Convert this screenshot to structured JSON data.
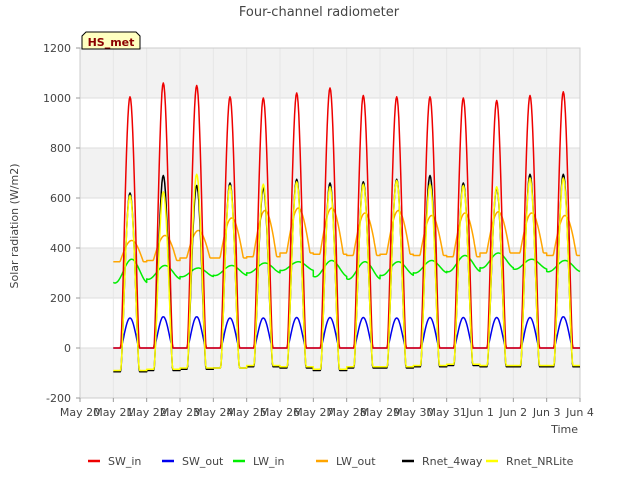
{
  "chart_data": {
    "type": "line",
    "title": "Four-channel radiometer",
    "xlabel": "Time",
    "ylabel": "Solar radiation (W/m2)",
    "site_label": "HS_met",
    "xlim": [
      20,
      35
    ],
    "ylim": [
      -200,
      1200
    ],
    "y_ticks": [
      -200,
      0,
      200,
      400,
      600,
      800,
      1000,
      1200
    ],
    "x_tick_values": [
      20,
      21,
      22,
      23,
      24,
      25,
      26,
      27,
      28,
      29,
      30,
      31,
      32,
      33,
      34,
      35
    ],
    "x_tick_labels": [
      "May 20",
      "May 21",
      "May 22",
      "May 23",
      "May 24",
      "May 25",
      "May 26",
      "May 27",
      "May 28",
      "May 29",
      "May 30",
      "May 31",
      "Jun 1",
      "Jun 2",
      "Jun 3",
      "Jun 4"
    ],
    "grid": true,
    "legend_position": "bottom",
    "days": [
      21,
      22,
      23,
      24,
      25,
      26,
      27,
      28,
      29,
      30,
      31,
      32,
      33,
      34,
      35
    ],
    "series": [
      {
        "name": "SW_in",
        "color": "#ee0000",
        "night": 0,
        "daily_peak": [
          1005,
          1060,
          1050,
          1005,
          1000,
          1020,
          1040,
          1010,
          1005,
          1005,
          1000,
          990,
          1010,
          1025
        ]
      },
      {
        "name": "SW_out",
        "color": "#0000ee",
        "night": 0,
        "daily_peak": [
          120,
          125,
          125,
          120,
          120,
          122,
          122,
          122,
          120,
          122,
          122,
          122,
          122,
          125
        ]
      },
      {
        "name": "LW_in",
        "color": "#00ee00",
        "daily_min": [
          260,
          275,
          285,
          290,
          300,
          310,
          285,
          275,
          290,
          300,
          305,
          320,
          315,
          305
        ],
        "daily_peak": [
          355,
          330,
          320,
          330,
          340,
          345,
          350,
          345,
          345,
          350,
          370,
          380,
          355,
          350
        ]
      },
      {
        "name": "LW_out",
        "color": "#ffa500",
        "daily_min": [
          345,
          350,
          360,
          360,
          365,
          380,
          375,
          370,
          375,
          370,
          365,
          380,
          380,
          370
        ],
        "daily_peak": [
          430,
          450,
          470,
          520,
          550,
          560,
          560,
          540,
          550,
          530,
          540,
          545,
          540,
          530
        ]
      },
      {
        "name": "Rnet_4way",
        "color": "#000000",
        "daily_min": [
          -95,
          -90,
          -85,
          -80,
          -75,
          -80,
          -90,
          -80,
          -80,
          -75,
          -70,
          -75,
          -75,
          -75
        ],
        "daily_peak": [
          620,
          690,
          650,
          660,
          640,
          675,
          660,
          665,
          675,
          690,
          660,
          640,
          695,
          695
        ]
      },
      {
        "name": "Rnet_NRLite",
        "color": "#ffff00",
        "daily_min": [
          -90,
          -85,
          -80,
          -80,
          -70,
          -75,
          -85,
          -75,
          -75,
          -70,
          -65,
          -70,
          -70,
          -70
        ],
        "daily_peak": [
          610,
          625,
          695,
          650,
          655,
          665,
          645,
          655,
          670,
          655,
          650,
          645,
          680,
          680
        ]
      }
    ]
  }
}
